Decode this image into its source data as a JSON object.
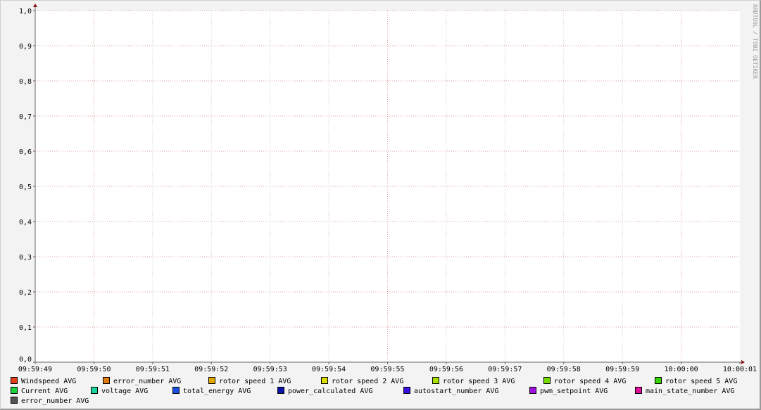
{
  "chart_data": {
    "type": "line",
    "title": "",
    "xlabel": "",
    "ylabel": "",
    "ylim": [
      0,
      1
    ],
    "y_ticks": [
      "0,0",
      "0,1",
      "0,2",
      "0,3",
      "0,4",
      "0,5",
      "0,6",
      "0,7",
      "0,8",
      "0,9",
      "1,0"
    ],
    "x_ticks": [
      "09:59:49",
      "09:59:50",
      "09:59:51",
      "09:59:52",
      "09:59:53",
      "09:59:54",
      "09:59:55",
      "09:59:56",
      "09:59:57",
      "09:59:58",
      "09:59:59",
      "10:00:00",
      "10:00:01"
    ],
    "x_major_ticks": [
      "09:59:50",
      "09:59:55",
      "10:00:00"
    ],
    "grid": true,
    "legend_position": "bottom",
    "series": [
      {
        "name": "Windspeed AVG",
        "color": "#e0401a",
        "values": []
      },
      {
        "name": "error_number AVG",
        "color": "#e07a10",
        "values": []
      },
      {
        "name": "rotor speed 1 AVG",
        "color": "#e0a800",
        "values": []
      },
      {
        "name": "rotor speed 2 AVG",
        "color": "#dcdc00",
        "values": []
      },
      {
        "name": "rotor speed 3 AVG",
        "color": "#a8e000",
        "values": []
      },
      {
        "name": "rotor speed 4 AVG",
        "color": "#74dc00",
        "values": []
      },
      {
        "name": "rotor speed 5 AVG",
        "color": "#36d400",
        "values": []
      },
      {
        "name": "Current AVG",
        "color": "#1ad43a",
        "values": []
      },
      {
        "name": "voltage AVG",
        "color": "#1ad4a0",
        "values": []
      },
      {
        "name": "total_energy AVG",
        "color": "#1a4ee0",
        "values": []
      },
      {
        "name": "power_calculated AVG",
        "color": "#0a14a8",
        "values": []
      },
      {
        "name": "autostart_number AVG",
        "color": "#3a10e0",
        "values": []
      },
      {
        "name": "pwm_setpoint AVG",
        "color": "#a010e0",
        "values": []
      },
      {
        "name": "main_state_number AVG",
        "color": "#e0109a",
        "values": []
      },
      {
        "name": "error_number AVG",
        "color": "#555555",
        "values": []
      }
    ]
  },
  "watermark": "RRDTOOL / TOBI OETIKER"
}
